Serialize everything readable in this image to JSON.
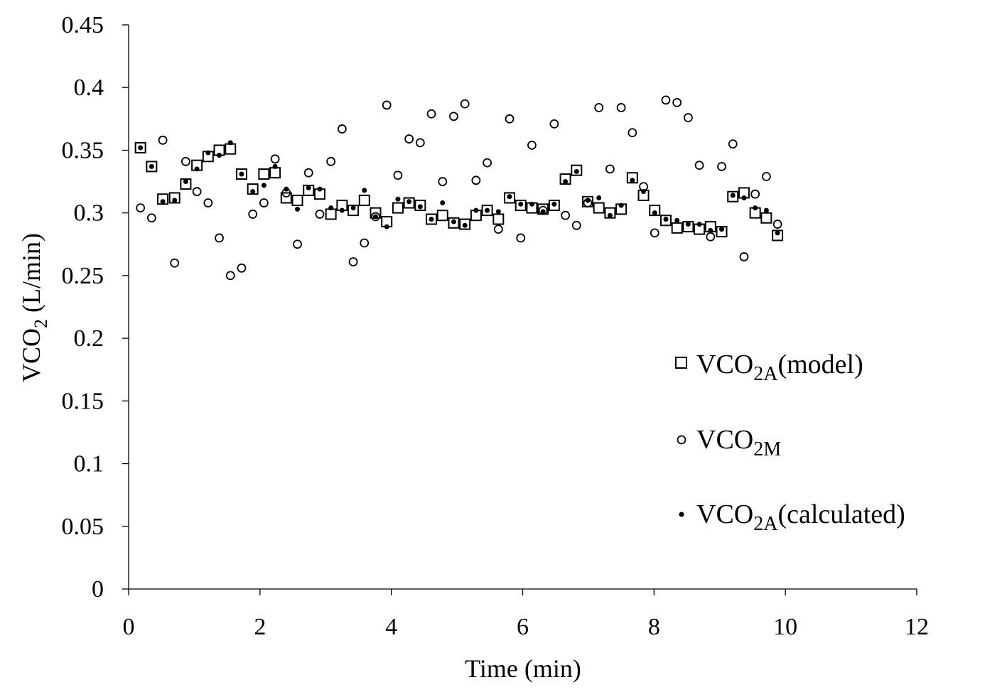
{
  "chart_data": {
    "type": "scatter",
    "xlabel": "Time (min)",
    "ylabel": {
      "main": "VCO",
      "sub": "2",
      "rest": " (L/min)"
    },
    "xlim": [
      0,
      12
    ],
    "ylim": [
      0,
      0.45
    ],
    "xticks": [
      "0",
      "2",
      "4",
      "6",
      "8",
      "10",
      "12"
    ],
    "yticks": [
      "0",
      "0.05",
      "0.1",
      "0.15",
      "0.2",
      "0.25",
      "0.3",
      "0.35",
      "0.4",
      "0.45"
    ],
    "grid": false,
    "legend_position": "right",
    "series": [
      {
        "name": "VCO2A(model)",
        "legend": {
          "main": "VCO",
          "sub": "2A",
          "rest": "(model)"
        },
        "marker": "square",
        "points": [
          [
            0.18,
            0.352
          ],
          [
            0.35,
            0.337
          ],
          [
            0.52,
            0.311
          ],
          [
            0.7,
            0.312
          ],
          [
            0.87,
            0.323
          ],
          [
            1.04,
            0.338
          ],
          [
            1.21,
            0.345
          ],
          [
            1.38,
            0.35
          ],
          [
            1.55,
            0.351
          ],
          [
            1.72,
            0.331
          ],
          [
            1.89,
            0.319
          ],
          [
            2.06,
            0.331
          ],
          [
            2.23,
            0.332
          ],
          [
            2.4,
            0.312
          ],
          [
            2.57,
            0.31
          ],
          [
            2.74,
            0.318
          ],
          [
            2.91,
            0.315
          ],
          [
            3.08,
            0.299
          ],
          [
            3.25,
            0.306
          ],
          [
            3.42,
            0.302
          ],
          [
            3.59,
            0.31
          ],
          [
            3.76,
            0.3
          ],
          [
            3.93,
            0.293
          ],
          [
            4.1,
            0.304
          ],
          [
            4.27,
            0.308
          ],
          [
            4.44,
            0.306
          ],
          [
            4.61,
            0.295
          ],
          [
            4.78,
            0.298
          ],
          [
            4.95,
            0.292
          ],
          [
            5.12,
            0.291
          ],
          [
            5.29,
            0.298
          ],
          [
            5.46,
            0.302
          ],
          [
            5.63,
            0.295
          ],
          [
            5.8,
            0.312
          ],
          [
            5.97,
            0.306
          ],
          [
            6.14,
            0.304
          ],
          [
            6.31,
            0.303
          ],
          [
            6.48,
            0.306
          ],
          [
            6.65,
            0.327
          ],
          [
            6.82,
            0.334
          ],
          [
            6.99,
            0.309
          ],
          [
            7.16,
            0.304
          ],
          [
            7.33,
            0.3
          ],
          [
            7.5,
            0.303
          ],
          [
            7.67,
            0.328
          ],
          [
            7.84,
            0.314
          ],
          [
            8.01,
            0.302
          ],
          [
            8.18,
            0.294
          ],
          [
            8.35,
            0.288
          ],
          [
            8.52,
            0.289
          ],
          [
            8.69,
            0.287
          ],
          [
            8.86,
            0.289
          ],
          [
            9.03,
            0.285
          ],
          [
            9.2,
            0.313
          ],
          [
            9.37,
            0.316
          ],
          [
            9.54,
            0.3
          ],
          [
            9.71,
            0.296
          ],
          [
            9.88,
            0.282
          ]
        ]
      },
      {
        "name": "VCO2M",
        "legend": {
          "main": "VCO",
          "sub": "2M",
          "rest": ""
        },
        "marker": "circle",
        "points": [
          [
            0.18,
            0.304
          ],
          [
            0.35,
            0.296
          ],
          [
            0.52,
            0.358
          ],
          [
            0.7,
            0.26
          ],
          [
            0.87,
            0.341
          ],
          [
            1.04,
            0.317
          ],
          [
            1.21,
            0.308
          ],
          [
            1.38,
            0.28
          ],
          [
            1.55,
            0.25
          ],
          [
            1.72,
            0.256
          ],
          [
            1.89,
            0.299
          ],
          [
            2.06,
            0.308
          ],
          [
            2.23,
            0.343
          ],
          [
            2.4,
            0.316
          ],
          [
            2.57,
            0.275
          ],
          [
            2.74,
            0.332
          ],
          [
            2.91,
            0.299
          ],
          [
            3.08,
            0.341
          ],
          [
            3.25,
            0.367
          ],
          [
            3.42,
            0.261
          ],
          [
            3.59,
            0.276
          ],
          [
            3.76,
            0.297
          ],
          [
            3.93,
            0.386
          ],
          [
            4.1,
            0.33
          ],
          [
            4.27,
            0.359
          ],
          [
            4.44,
            0.356
          ],
          [
            4.61,
            0.379
          ],
          [
            4.78,
            0.325
          ],
          [
            4.95,
            0.377
          ],
          [
            5.12,
            0.387
          ],
          [
            5.29,
            0.326
          ],
          [
            5.46,
            0.34
          ],
          [
            5.63,
            0.287
          ],
          [
            5.8,
            0.375
          ],
          [
            5.97,
            0.28
          ],
          [
            6.14,
            0.354
          ],
          [
            6.31,
            0.302
          ],
          [
            6.48,
            0.371
          ],
          [
            6.65,
            0.298
          ],
          [
            6.82,
            0.29
          ],
          [
            6.99,
            0.308
          ],
          [
            7.16,
            0.384
          ],
          [
            7.33,
            0.335
          ],
          [
            7.5,
            0.384
          ],
          [
            7.67,
            0.364
          ],
          [
            7.84,
            0.321
          ],
          [
            8.01,
            0.284
          ],
          [
            8.18,
            0.39
          ],
          [
            8.35,
            0.388
          ],
          [
            8.52,
            0.376
          ],
          [
            8.69,
            0.338
          ],
          [
            8.86,
            0.281
          ],
          [
            9.03,
            0.337
          ],
          [
            9.2,
            0.355
          ],
          [
            9.37,
            0.265
          ],
          [
            9.54,
            0.315
          ],
          [
            9.71,
            0.329
          ],
          [
            9.88,
            0.291
          ]
        ]
      },
      {
        "name": "VCO2A(calculated)",
        "legend": {
          "main": "VCO",
          "sub": "2A",
          "rest": "(calculated)"
        },
        "marker": "dot",
        "points": [
          [
            0.18,
            0.352
          ],
          [
            0.35,
            0.337
          ],
          [
            0.52,
            0.309
          ],
          [
            0.7,
            0.31
          ],
          [
            0.87,
            0.325
          ],
          [
            1.04,
            0.335
          ],
          [
            1.21,
            0.348
          ],
          [
            1.38,
            0.346
          ],
          [
            1.55,
            0.356
          ],
          [
            1.72,
            0.331
          ],
          [
            1.89,
            0.317
          ],
          [
            2.06,
            0.322
          ],
          [
            2.23,
            0.337
          ],
          [
            2.4,
            0.319
          ],
          [
            2.57,
            0.303
          ],
          [
            2.74,
            0.32
          ],
          [
            2.91,
            0.319
          ],
          [
            3.08,
            0.304
          ],
          [
            3.25,
            0.302
          ],
          [
            3.42,
            0.304
          ],
          [
            3.59,
            0.318
          ],
          [
            3.76,
            0.297
          ],
          [
            3.93,
            0.289
          ],
          [
            4.1,
            0.311
          ],
          [
            4.27,
            0.309
          ],
          [
            4.44,
            0.305
          ],
          [
            4.61,
            0.295
          ],
          [
            4.78,
            0.308
          ],
          [
            4.95,
            0.293
          ],
          [
            5.12,
            0.29
          ],
          [
            5.29,
            0.302
          ],
          [
            5.46,
            0.302
          ],
          [
            5.63,
            0.301
          ],
          [
            5.8,
            0.313
          ],
          [
            5.97,
            0.307
          ],
          [
            6.14,
            0.307
          ],
          [
            6.31,
            0.301
          ],
          [
            6.48,
            0.307
          ],
          [
            6.65,
            0.325
          ],
          [
            6.82,
            0.333
          ],
          [
            6.99,
            0.31
          ],
          [
            7.16,
            0.312
          ],
          [
            7.33,
            0.298
          ],
          [
            7.5,
            0.306
          ],
          [
            7.67,
            0.326
          ],
          [
            7.84,
            0.317
          ],
          [
            8.01,
            0.3
          ],
          [
            8.18,
            0.295
          ],
          [
            8.35,
            0.294
          ],
          [
            8.52,
            0.291
          ],
          [
            8.69,
            0.291
          ],
          [
            8.86,
            0.286
          ],
          [
            9.03,
            0.287
          ],
          [
            9.2,
            0.314
          ],
          [
            9.37,
            0.312
          ],
          [
            9.54,
            0.304
          ],
          [
            9.71,
            0.302
          ],
          [
            9.88,
            0.284
          ]
        ]
      }
    ]
  }
}
